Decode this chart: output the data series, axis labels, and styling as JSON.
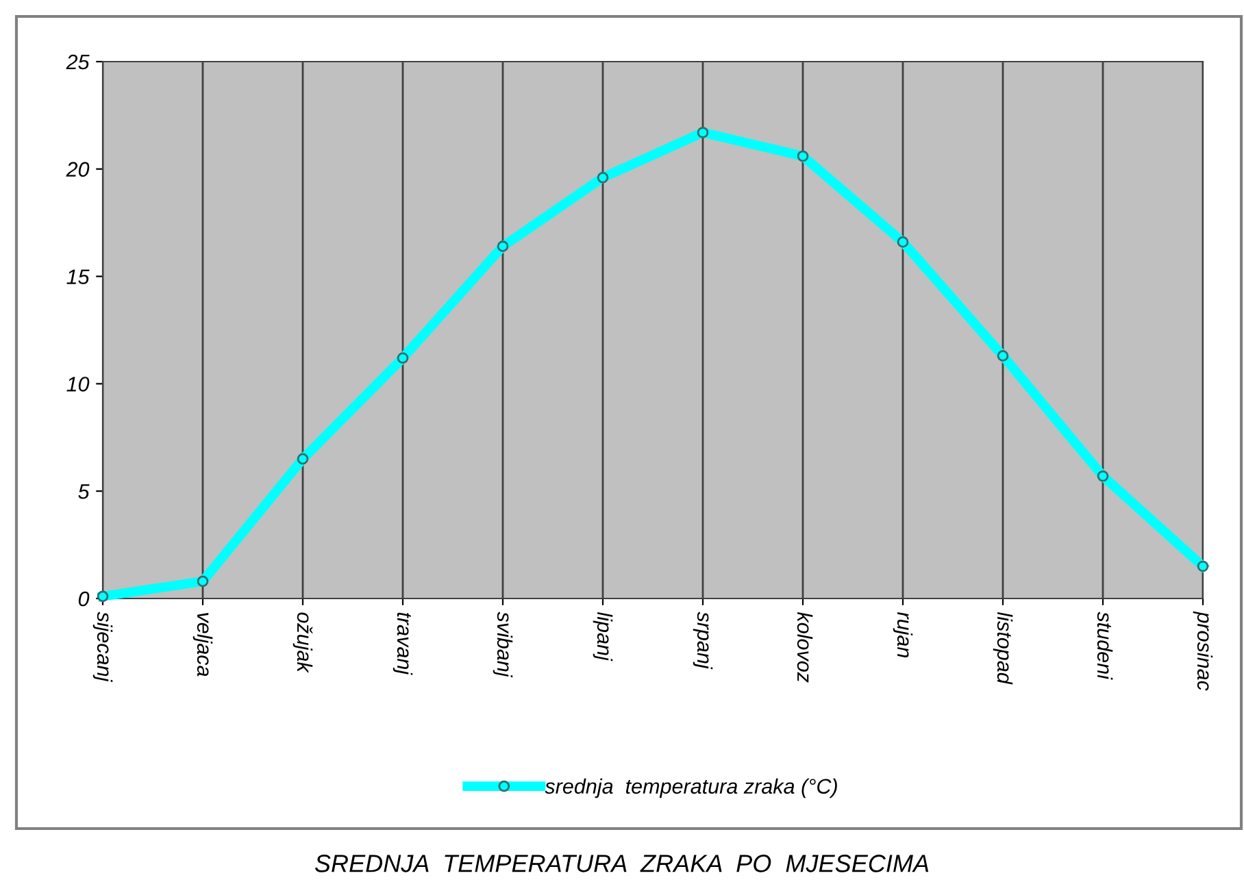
{
  "chart_data": {
    "type": "line",
    "title": "SREDNJA  TEMPERATURA  ZRAKA  PO  MJESECIMA",
    "categories": [
      "sijecanj",
      "veljaca",
      "ožujak",
      "travanj",
      "svibanj",
      "lipanj",
      "srpanj",
      "kolovoz",
      "rujan",
      "listopad",
      "studeni",
      "prosinac"
    ],
    "series": [
      {
        "name": "srednja  temperatura zraka (°C)",
        "color": "#00ffff",
        "values": [
          0.1,
          0.8,
          6.5,
          11.2,
          16.4,
          19.6,
          21.7,
          20.6,
          16.6,
          11.3,
          5.7,
          1.5
        ]
      }
    ],
    "ylim": [
      0,
      25
    ],
    "yticks": [
      0,
      5,
      10,
      15,
      20,
      25
    ],
    "grid": "x",
    "legend": "bottom",
    "marker": "circle",
    "line_style": "solid"
  }
}
